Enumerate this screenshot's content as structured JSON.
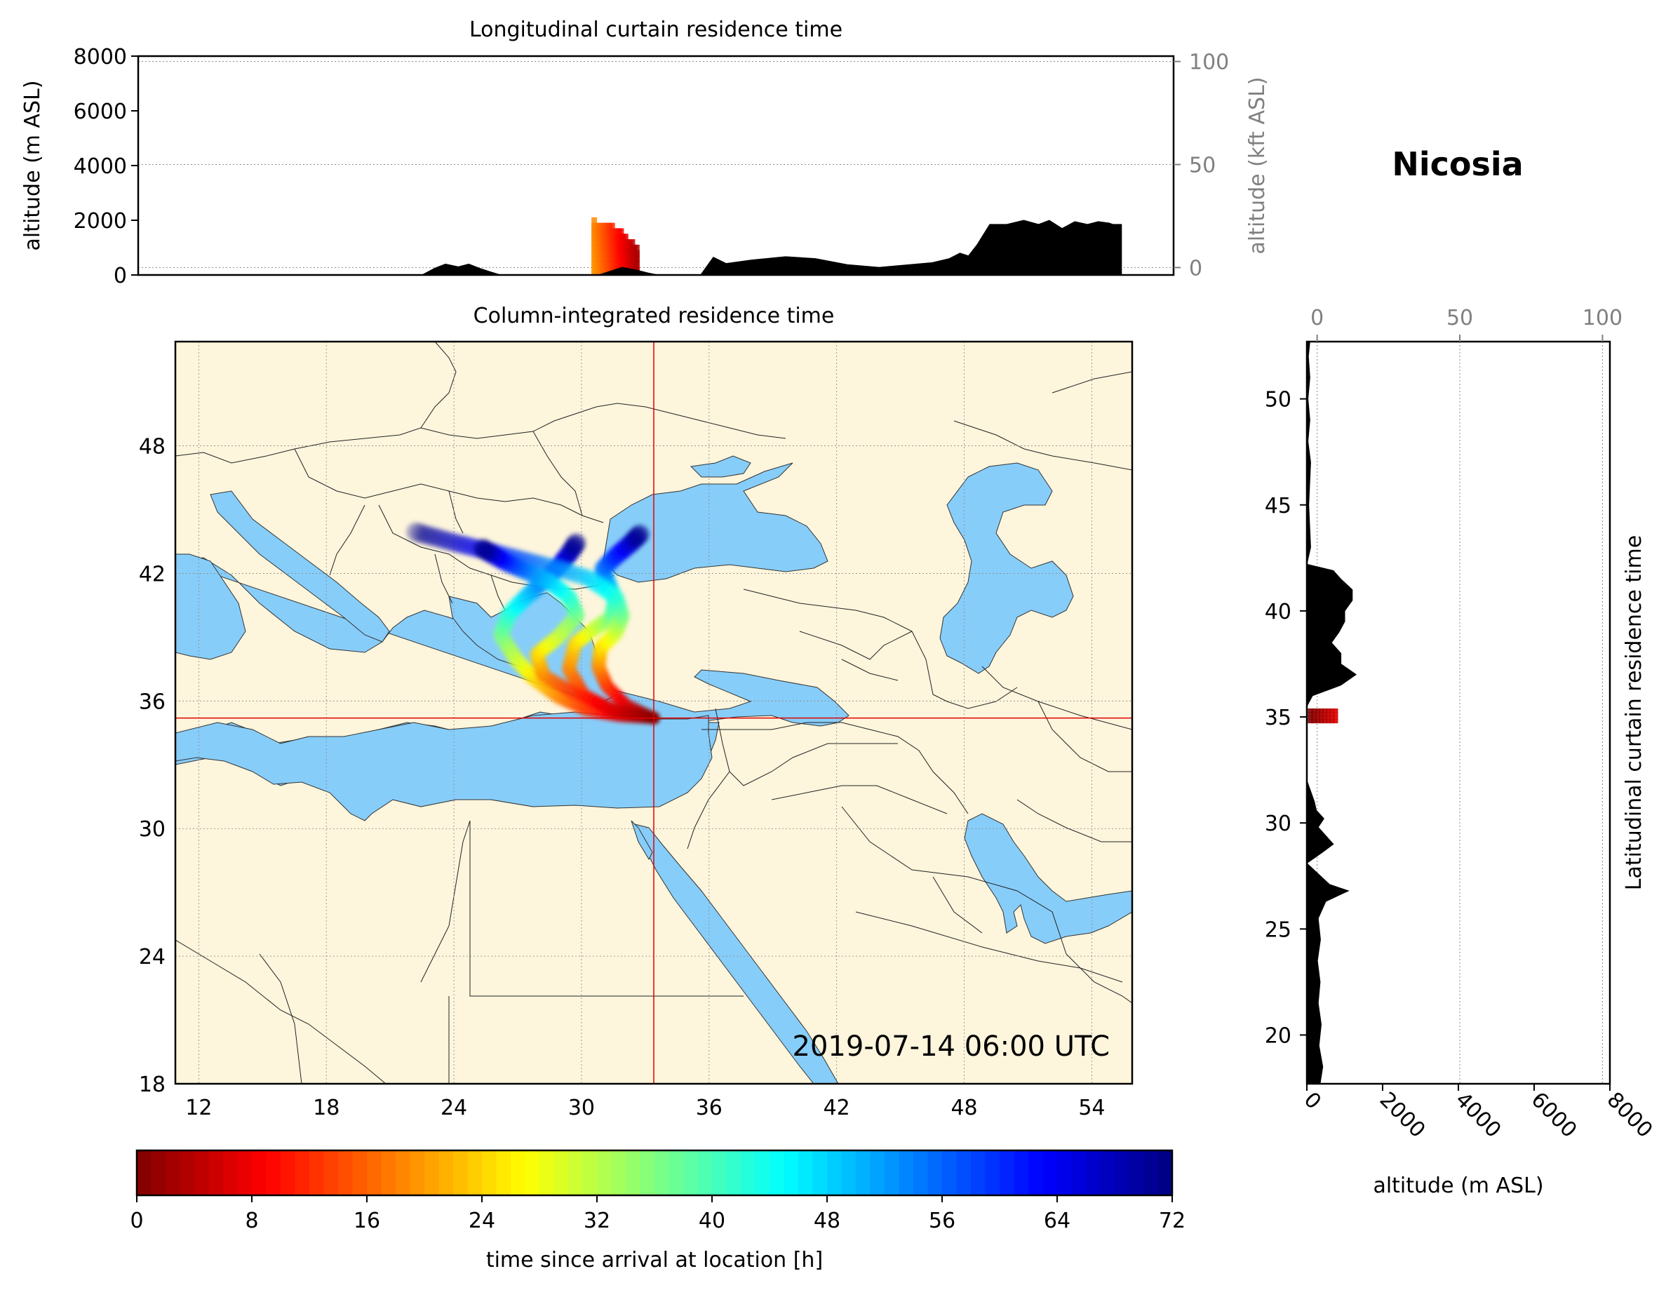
{
  "location_title": "Nicosia",
  "timestamp": "2019-07-14 06:00 UTC",
  "chart_data": [
    {
      "panel": "longitudinal_curtain",
      "type": "area",
      "title": "Longitudinal curtain residence time",
      "ylabel": "altitude (m ASL)",
      "ylabel_right": "altitude (kft ASL)",
      "ylim": [
        0,
        8000
      ],
      "yticks": [
        "0",
        "2000",
        "4000",
        "6000",
        "8000"
      ],
      "ylim_right": [
        -3.6,
        102.6
      ],
      "yticks_right": [
        "0",
        "50",
        "100"
      ],
      "grid": "horizontal dotted",
      "terrain": {
        "name": "terrain",
        "x": [
          10.5,
          22.5,
          23.1,
          23.6,
          24.2,
          24.7,
          25.2,
          25.7,
          26.2,
          30.8,
          31.4,
          31.9,
          32.5,
          33.1,
          33.6,
          34.0,
          34.4,
          35.0,
          35.6,
          36.2,
          36.8,
          38.0,
          39.6,
          41.0,
          42.5,
          44.0,
          46.5,
          47.3,
          47.8,
          48.2,
          48.6,
          49.2,
          50.0,
          50.8,
          51.5,
          52.0,
          52.6,
          53.2,
          53.8,
          54.3,
          54.8,
          55.0,
          55.4
        ],
        "values": [
          0,
          0,
          250,
          400,
          300,
          400,
          250,
          120,
          0,
          0,
          150,
          280,
          200,
          80,
          0,
          0,
          0,
          0,
          0,
          650,
          420,
          550,
          670,
          600,
          380,
          280,
          450,
          600,
          800,
          700,
          1100,
          1850,
          1850,
          2000,
          1850,
          2000,
          1700,
          1950,
          1850,
          1950,
          1900,
          1850,
          1850
        ]
      },
      "residence_patch": {
        "name": "residence time",
        "x_range": [
          30.6,
          32.6
        ],
        "altitude_range": [
          0,
          1800
        ],
        "time_since_arrival_h": [
          4,
          20
        ]
      }
    },
    {
      "panel": "map",
      "type": "scatter",
      "title": "Column-integrated residence time",
      "xlim": [
        10.9,
        55.9
      ],
      "ylim": [
        18,
        52.9
      ],
      "xticks": [
        "12",
        "18",
        "24",
        "30",
        "36",
        "42",
        "48",
        "54"
      ],
      "yticks": [
        "18",
        "24",
        "30",
        "36",
        "42",
        "48"
      ],
      "receptor": {
        "lon": 33.4,
        "lat": 35.2
      },
      "trajectories": [
        {
          "t_h": [
            0,
            6,
            12,
            18,
            24,
            30,
            36,
            42,
            48,
            54,
            60,
            66,
            72
          ],
          "lon": [
            33.4,
            31.8,
            30.2,
            28.9,
            27.7,
            26.9,
            26.2,
            26.6,
            27.4,
            28.2,
            28.9,
            29.4,
            29.8
          ],
          "lat": [
            35.2,
            35.3,
            35.6,
            36.2,
            37.1,
            38.0,
            39.1,
            40.1,
            40.9,
            41.6,
            42.3,
            42.9,
            43.5
          ]
        },
        {
          "t_h": [
            0,
            6,
            12,
            18,
            24,
            30,
            36,
            42,
            48,
            54,
            60,
            66,
            72
          ],
          "lon": [
            33.4,
            31.6,
            30.1,
            29.4,
            29.7,
            30.6,
            31.4,
            31.6,
            31.3,
            31.0,
            31.6,
            32.3,
            32.8
          ],
          "lat": [
            35.2,
            35.5,
            36.3,
            37.5,
            38.7,
            39.4,
            39.9,
            40.7,
            41.4,
            42.2,
            42.8,
            43.4,
            43.9
          ]
        },
        {
          "t_h": [
            0,
            6,
            12,
            18,
            24,
            30,
            36,
            42,
            48,
            54,
            60,
            66,
            72
          ],
          "lon": [
            33.4,
            32.1,
            31.2,
            30.8,
            30.9,
            31.6,
            31.9,
            31.6,
            30.3,
            28.2,
            26.2,
            24.2,
            22.0
          ],
          "lat": [
            35.2,
            35.8,
            36.7,
            37.6,
            38.5,
            39.2,
            40.0,
            40.9,
            41.8,
            42.4,
            42.9,
            43.4,
            44.0
          ]
        },
        {
          "t_h": [
            0,
            6,
            12,
            18,
            24,
            30,
            36,
            42,
            48,
            54,
            60,
            66,
            72
          ],
          "lon": [
            33.4,
            31.5,
            29.6,
            28.2,
            27.9,
            28.9,
            29.8,
            29.4,
            28.5,
            27.4,
            26.5,
            25.8,
            25.3
          ],
          "lat": [
            35.2,
            35.6,
            36.4,
            37.2,
            38.2,
            39.0,
            40.0,
            40.9,
            41.6,
            42.1,
            42.5,
            42.9,
            43.2
          ]
        }
      ]
    },
    {
      "panel": "latitudinal_curtain",
      "type": "area",
      "ylabel_right": "Latitudinal curtain residence time",
      "xlabel": "altitude (m ASL)",
      "xlim": [
        0,
        8000
      ],
      "xticks": [
        "0",
        "2000",
        "4000",
        "6000",
        "8000"
      ],
      "xlim_top": [
        -3.6,
        102.6
      ],
      "xticks_top": [
        "0",
        "50",
        "100"
      ],
      "ylim": [
        17.7,
        52.7
      ],
      "yticks": [
        "20",
        "25",
        "30",
        "35",
        "40",
        "45",
        "50"
      ],
      "grid": "vertical dotted",
      "terrain": {
        "name": "terrain",
        "lat": [
          17.7,
          18.5,
          19.5,
          20.5,
          21.5,
          22.5,
          23.5,
          24.5,
          25.5,
          26.3,
          26.8,
          27.1,
          27.6,
          28.1,
          28.6,
          29.0,
          29.4,
          29.8,
          30.2,
          30.6,
          31.0,
          31.5,
          32.0,
          35.5,
          36.0,
          36.5,
          37.0,
          37.5,
          38.0,
          38.5,
          39.0,
          39.5,
          40.0,
          40.5,
          41.0,
          41.5,
          41.9,
          42.2,
          43.0,
          45.0,
          47.0,
          48.0,
          49.0,
          50.0,
          51.0,
          52.0,
          52.7
        ],
        "values": [
          350,
          420,
          320,
          380,
          300,
          350,
          280,
          360,
          300,
          500,
          1100,
          600,
          300,
          0,
          400,
          700,
          500,
          300,
          450,
          250,
          200,
          100,
          0,
          0,
          150,
          900,
          1300,
          900,
          900,
          650,
          850,
          1000,
          1000,
          1200,
          1200,
          900,
          700,
          0,
          100,
          50,
          100,
          30,
          80,
          30,
          80,
          40,
          80
        ]
      },
      "residence_patch": {
        "name": "residence time",
        "lat_range": [
          34.8,
          35.3
        ],
        "altitude_range": [
          100,
          750
        ],
        "time_since_arrival_h": [
          0,
          6
        ]
      }
    },
    {
      "panel": "colorbar",
      "type": "heatmap",
      "label": "time since arrival at location [h]",
      "range": [
        0,
        72
      ],
      "ticks": [
        "0",
        "8",
        "16",
        "24",
        "32",
        "40",
        "48",
        "56",
        "64",
        "72"
      ],
      "colormap": "jet_r"
    }
  ]
}
